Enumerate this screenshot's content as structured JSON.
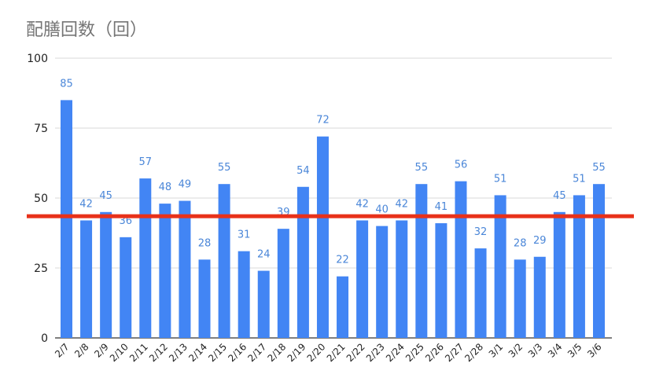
{
  "chart_data": {
    "type": "bar",
    "title": "配膳回数（回）",
    "xlabel": "",
    "ylabel": "",
    "ylim": [
      0,
      100
    ],
    "yticks": [
      "0",
      "25",
      "50",
      "75",
      "100"
    ],
    "grid": true,
    "legend": "none",
    "categories": [
      "2/7",
      "2/8",
      "2/9",
      "2/10",
      "2/11",
      "2/12",
      "2/13",
      "2/14",
      "2/15",
      "2/16",
      "2/17",
      "2/18",
      "2/19",
      "2/20",
      "2/21",
      "2/22",
      "2/23",
      "2/24",
      "2/25",
      "2/26",
      "2/27",
      "2/28",
      "3/1",
      "3/2",
      "3/3",
      "3/4",
      "3/5",
      "3/6"
    ],
    "values": [
      85,
      42,
      45,
      36,
      57,
      48,
      49,
      28,
      55,
      31,
      24,
      39,
      54,
      72,
      22,
      42,
      40,
      42,
      55,
      41,
      56,
      32,
      51,
      28,
      29,
      45,
      51,
      55
    ],
    "annotations": [
      {
        "type": "horizontal-line",
        "value": 43.5,
        "color": "#e8311a"
      }
    ]
  },
  "colors": {
    "bar": "#4285f4",
    "data_label": "#4a86d8",
    "grid": "#d9d9d9",
    "axis": "#333333",
    "reference_line": "#e8311a",
    "title": "#757575"
  }
}
